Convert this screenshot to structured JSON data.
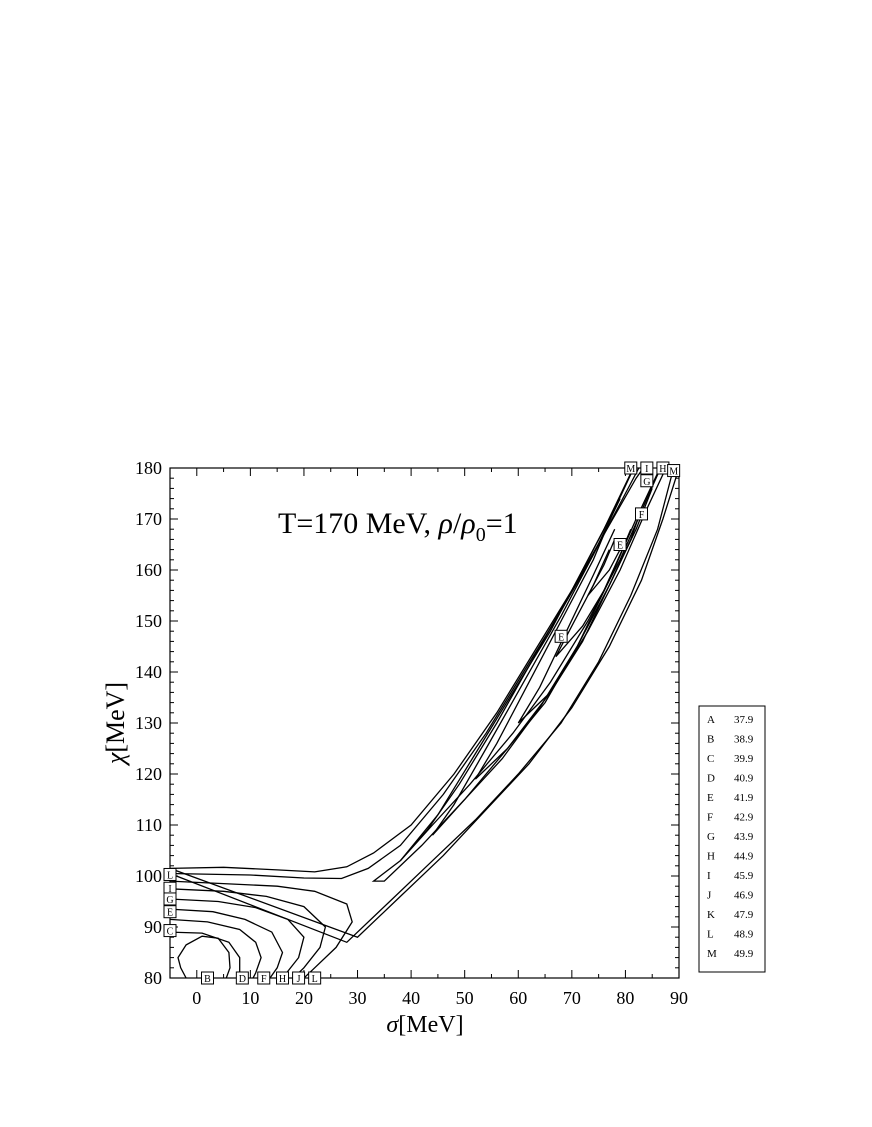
{
  "chart_data": {
    "type": "contour",
    "title": "T=170 MeV, ρ/ρ0=1",
    "title_parts": {
      "t": "T=170 MeV, ",
      "rho": "ρ",
      "slash": "/",
      "rho0": "ρ",
      "sub0": "0",
      "eq": "=1"
    },
    "xlabel": {
      "sym": "σ",
      "unit": "[MeV]"
    },
    "ylabel": {
      "sym": "χ",
      "unit": "[MeV]"
    },
    "xlim": [
      -5,
      90
    ],
    "ylim": [
      80,
      180
    ],
    "xticks": [
      0,
      10,
      20,
      30,
      40,
      50,
      60,
      70,
      80,
      90
    ],
    "yticks": [
      80,
      90,
      100,
      110,
      120,
      130,
      140,
      150,
      160,
      170,
      180
    ],
    "legend_position": "right",
    "levels": [
      {
        "label": "A",
        "value": 37.9
      },
      {
        "label": "B",
        "value": 38.9
      },
      {
        "label": "C",
        "value": 39.9
      },
      {
        "label": "D",
        "value": 40.9
      },
      {
        "label": "E",
        "value": 41.9
      },
      {
        "label": "F",
        "value": 42.9
      },
      {
        "label": "G",
        "value": 43.9
      },
      {
        "label": "H",
        "value": 44.9
      },
      {
        "label": "I",
        "value": 45.9
      },
      {
        "label": "J",
        "value": 46.9
      },
      {
        "label": "K",
        "value": 47.9
      },
      {
        "label": "L",
        "value": 48.9
      },
      {
        "label": "M",
        "value": 49.9
      }
    ],
    "contour_labels": [
      {
        "text": "M",
        "x": 81,
        "y": 180
      },
      {
        "text": "I",
        "x": 84,
        "y": 180
      },
      {
        "text": "H",
        "x": 87,
        "y": 180
      },
      {
        "text": "M",
        "x": 89,
        "y": 179.5
      },
      {
        "text": "G",
        "x": 84,
        "y": 177.5
      },
      {
        "text": "F",
        "x": 83,
        "y": 171
      },
      {
        "text": "E",
        "x": 79,
        "y": 165
      },
      {
        "text": "E",
        "x": 68,
        "y": 147
      },
      {
        "text": "L",
        "x": -5,
        "y": 100.3
      },
      {
        "text": "I",
        "x": -5,
        "y": 97.6
      },
      {
        "text": "G",
        "x": -5,
        "y": 95.5
      },
      {
        "text": "E",
        "x": -5,
        "y": 93
      },
      {
        "text": "C",
        "x": -5,
        "y": 89.3
      },
      {
        "text": "B",
        "x": 2,
        "y": 80
      },
      {
        "text": "D",
        "x": 8.5,
        "y": 80
      },
      {
        "text": "F",
        "x": 12.5,
        "y": 80
      },
      {
        "text": "H",
        "x": 16,
        "y": 80
      },
      {
        "text": "J",
        "x": 19,
        "y": 80
      },
      {
        "text": "L",
        "x": 22,
        "y": 80
      }
    ]
  }
}
